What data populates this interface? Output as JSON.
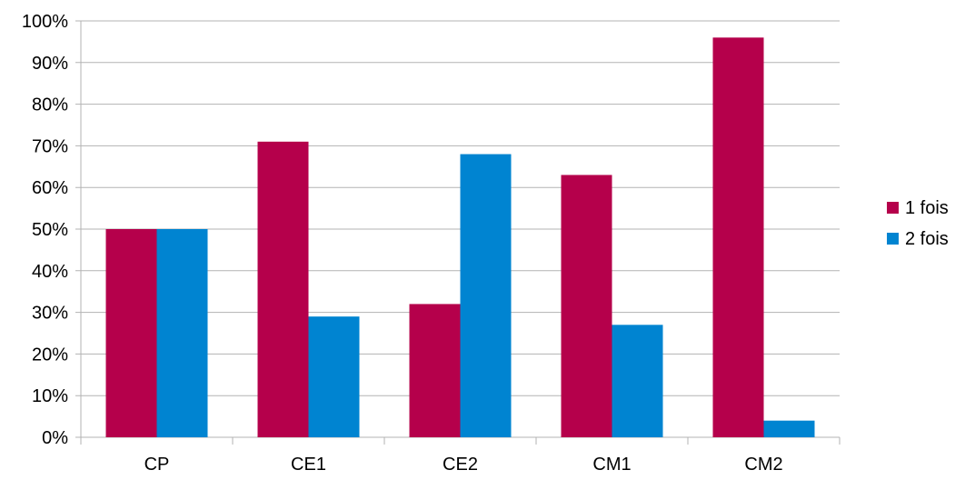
{
  "chart_data": {
    "type": "bar",
    "title": "",
    "xlabel": "",
    "ylabel": "",
    "categories": [
      "CP",
      "CE1",
      "CE2",
      "CM1",
      "CM2"
    ],
    "series": [
      {
        "name": "1 fois",
        "color": "#b5004b",
        "values": [
          50,
          71,
          32,
          63,
          96
        ]
      },
      {
        "name": "2 fois",
        "color": "#0084d1",
        "values": [
          50,
          29,
          68,
          27,
          4
        ]
      }
    ],
    "ylim": [
      0,
      100
    ],
    "yticks": [
      "0%",
      "10%",
      "20%",
      "30%",
      "40%",
      "50%",
      "60%",
      "70%",
      "80%",
      "90%",
      "100%"
    ],
    "grid": true,
    "legend_position": "right"
  }
}
